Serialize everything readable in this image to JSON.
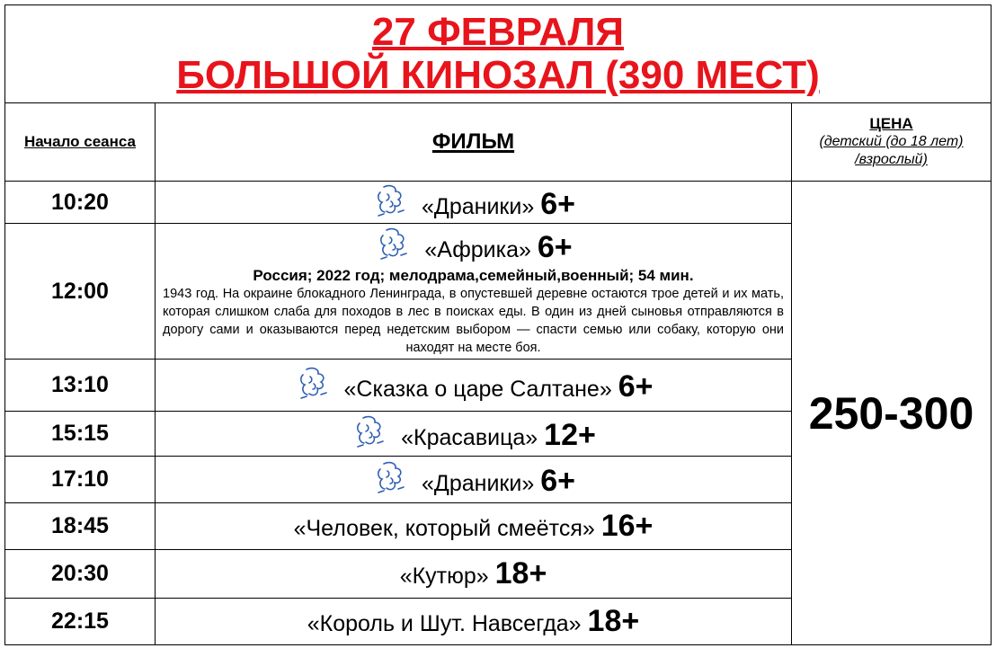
{
  "title": {
    "line1": "27 ФЕВРАЛЯ",
    "line2": "БОЛЬШОЙ КИНОЗАЛ (390 МЕСТ)"
  },
  "header": {
    "time": "Начало сеанса",
    "film": "ФИЛЬМ",
    "price_title": "ЦЕНА",
    "price_sub1": "(детский (до 18 лет)",
    "price_sub2": "/взрослый)"
  },
  "price": "250-300",
  "colors": {
    "title": "#e8141c",
    "icon": "#2f5fb3"
  },
  "sessions": [
    {
      "time": "10:20",
      "film": "«Драники»",
      "age": "6+",
      "icon": "pushkin-card-icon"
    },
    {
      "time": "12:00",
      "film": "«Африка»",
      "age": "6+",
      "icon": "pushkin-card-icon",
      "meta": "Россия; 2022 год; мелодрама,семейный,военный; 54 мин.",
      "description": "1943 год. На окраине блокадного Ленинграда, в опустевшей деревне остаются трое детей и их мать, которая слишком слаба для походов в лес в поисках еды. В один из дней сыновья отправляются в дорогу сами и оказываются перед недетским выбором — спасти семью или собаку, которую они находят на месте боя."
    },
    {
      "time": "13:10",
      "film": "«Сказка о царе Салтане»",
      "age": "6+",
      "icon": "pushkin-card-icon"
    },
    {
      "time": "15:15",
      "film": "«Красавица»",
      "age": "12+",
      "icon": "pushkin-card-icon"
    },
    {
      "time": "17:10",
      "film": "«Драники»",
      "age": "6+",
      "icon": "pushkin-card-icon"
    },
    {
      "time": "18:45",
      "film": "«Человек, который смеётся»",
      "age": "16+"
    },
    {
      "time": "20:30",
      "film": "«Кутюр»",
      "age": "18+"
    },
    {
      "time": "22:15",
      "film": "«Король и Шут. Навсегда»",
      "age": "18+"
    }
  ]
}
